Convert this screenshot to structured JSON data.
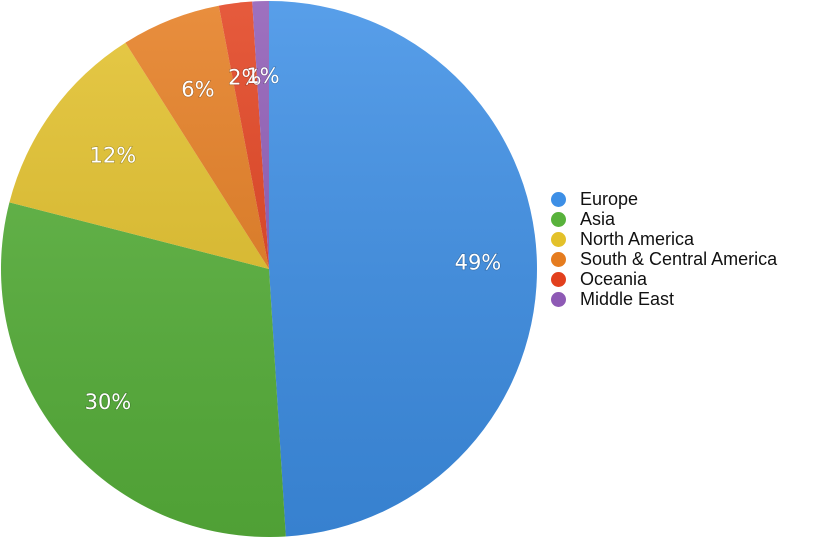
{
  "chart_data": {
    "type": "pie",
    "title": "",
    "categories": [
      "Europe",
      "Asia",
      "North America",
      "South & Central America",
      "Oceania",
      "Middle East"
    ],
    "values": [
      49,
      30,
      12,
      6,
      2,
      1
    ],
    "value_labels": [
      "49%",
      "30%",
      "12%",
      "6%",
      "2%",
      "1%"
    ],
    "colors": [
      "#3d8fe6",
      "#58b23b",
      "#e3c12a",
      "#e57c1f",
      "#e2401d",
      "#8e5ab5"
    ],
    "legend_placement": "right",
    "start_angle": "12 o'clock",
    "direction": "clockwise"
  }
}
